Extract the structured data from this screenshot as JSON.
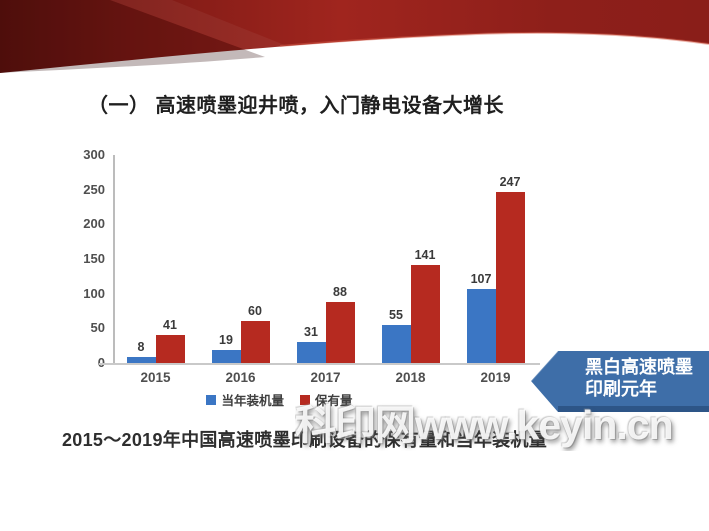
{
  "slide": {
    "title": "（一） 高速喷墨迎井喷，入门静电设备大增长",
    "caption": "2015～2019年中国高速喷墨印刷设备的保有量和当年装机量",
    "watermark": "科印网www.keyin.cn",
    "callout": {
      "line1": "黑白高速喷墨",
      "line2": "印刷元年"
    }
  },
  "chart_data": {
    "type": "bar",
    "categories": [
      "2015",
      "2016",
      "2017",
      "2018",
      "2019"
    ],
    "series": [
      {
        "name": "当年装机量",
        "color": "#3b76c4",
        "values": [
          8,
          19,
          31,
          55,
          107
        ]
      },
      {
        "name": "保有量",
        "color": "#b62a20",
        "values": [
          41,
          60,
          88,
          141,
          247
        ]
      }
    ],
    "ylim": [
      0,
      300
    ],
    "yticks": [
      0,
      50,
      100,
      150,
      200,
      250,
      300
    ],
    "grid": false,
    "legend_position": "bottom",
    "title": "",
    "xlabel": "",
    "ylabel": ""
  },
  "colors": {
    "bar_blue": "#3b76c4",
    "bar_red": "#b62a20",
    "callout_blue": "#3e6ea8",
    "callout_blue_dark": "#2d5587",
    "ribbon_red": "#9e231d",
    "ribbon_red_dark": "#5e130f"
  }
}
